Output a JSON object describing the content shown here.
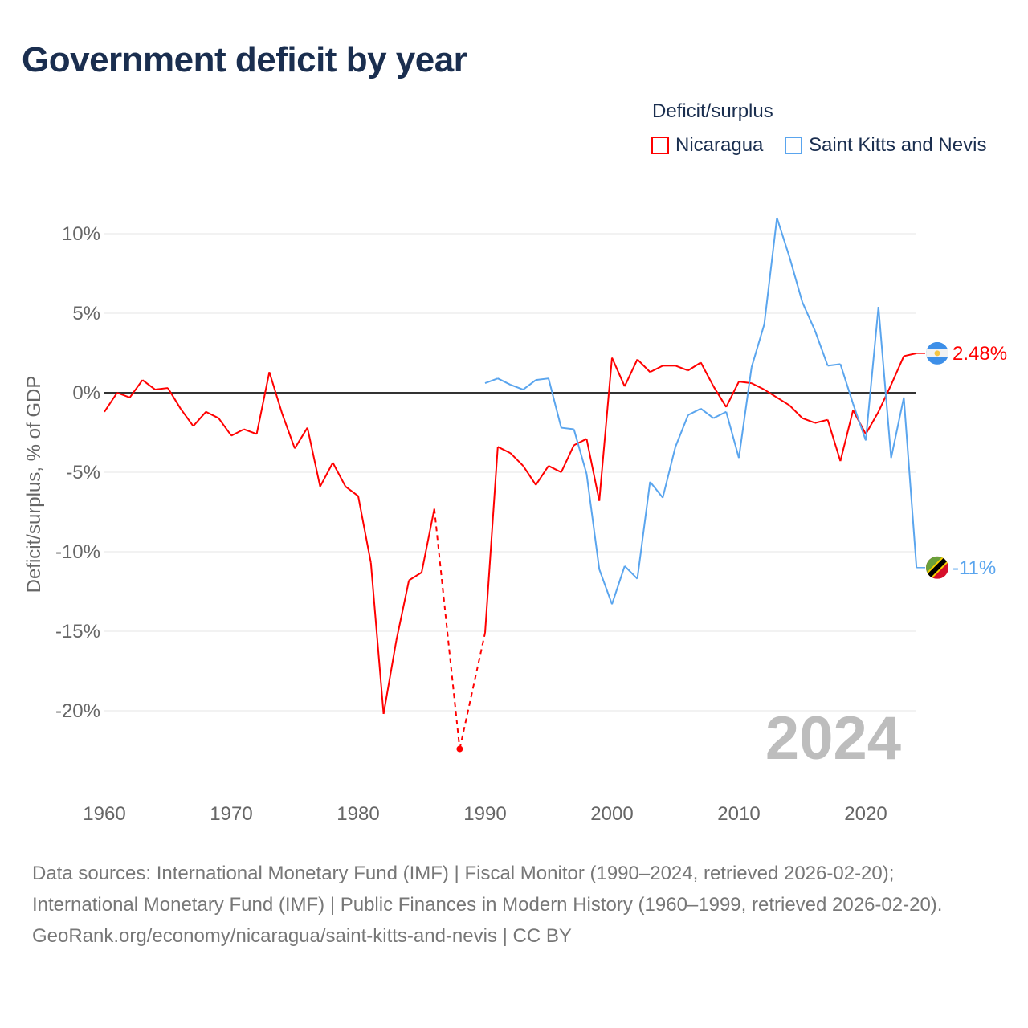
{
  "title": "Government deficit by year",
  "legend": {
    "title": "Deficit/surplus",
    "items": [
      {
        "label": "Nicaragua",
        "color": "#ff0000"
      },
      {
        "label": "Saint Kitts and Nevis",
        "color": "#5aa5ee"
      }
    ]
  },
  "footer": {
    "sources": "Data sources: International Monetary Fund (IMF) | Fiscal Monitor (1990–2024, retrieved 2026-02-20); International Monetary Fund (IMF) | Public Finances in Modern History (1960–1999, retrieved 2026-02-20).",
    "credit": "GeoRank.org/economy/nicaragua/saint-kitts-and-nevis | CC BY"
  },
  "chart_data": {
    "type": "line",
    "title": "Government deficit by year",
    "ylabel": "Deficit/surplus, % of GDP",
    "xlabel": "",
    "year_watermark": "2024",
    "xlim": [
      1960,
      2024
    ],
    "ylim": [
      -24,
      12
    ],
    "xticks": [
      "1960",
      "1970",
      "1980",
      "1990",
      "2000",
      "2010",
      "2020"
    ],
    "yticks": [
      {
        "v": 10,
        "label": "10%"
      },
      {
        "v": 5,
        "label": "5%"
      },
      {
        "v": 0,
        "label": "0%"
      },
      {
        "v": -5,
        "label": "-5%"
      },
      {
        "v": -10,
        "label": "-10%"
      },
      {
        "v": -15,
        "label": "-15%"
      },
      {
        "v": -20,
        "label": "-20%"
      }
    ],
    "series": [
      {
        "name": "Nicaragua",
        "color": "#ff0000",
        "end_label": "2.48%",
        "flag": "nicaragua-flag",
        "x": [
          1960,
          1961,
          1962,
          1963,
          1964,
          1965,
          1966,
          1967,
          1968,
          1969,
          1970,
          1971,
          1972,
          1973,
          1974,
          1975,
          1976,
          1977,
          1978,
          1979,
          1980,
          1981,
          1982,
          1983,
          1984,
          1985,
          1986,
          1988,
          1990,
          1991,
          1992,
          1993,
          1994,
          1995,
          1996,
          1997,
          1998,
          1999,
          2000,
          2001,
          2002,
          2003,
          2004,
          2005,
          2006,
          2007,
          2008,
          2009,
          2010,
          2011,
          2012,
          2013,
          2014,
          2015,
          2016,
          2017,
          2018,
          2019,
          2020,
          2021,
          2022,
          2023,
          2024
        ],
        "values": [
          -1.2,
          0.0,
          -0.3,
          0.8,
          0.2,
          0.3,
          -1.0,
          -2.1,
          -1.2,
          -1.6,
          -2.7,
          -2.3,
          -2.6,
          1.3,
          -1.3,
          -3.5,
          -2.2,
          -5.9,
          -4.4,
          -5.9,
          -6.5,
          -10.7,
          -20.2,
          -15.6,
          -11.8,
          -11.3,
          -7.3,
          -22.4,
          -15.1,
          -3.4,
          -3.8,
          -4.6,
          -5.8,
          -4.6,
          -5.0,
          -3.3,
          -2.9,
          -6.8,
          2.2,
          0.4,
          2.1,
          1.3,
          1.7,
          1.7,
          1.4,
          1.9,
          0.4,
          -0.9,
          0.7,
          0.6,
          0.2,
          -0.3,
          -0.8,
          -1.6,
          -1.9,
          -1.7,
          -4.3,
          -1.1,
          -2.6,
          -1.2,
          0.5,
          2.3,
          2.48
        ]
      },
      {
        "name": "Saint Kitts and Nevis",
        "color": "#5aa5ee",
        "end_label": "-11%",
        "flag": "saint-kitts-and-nevis-flag",
        "x": [
          1990,
          1991,
          1992,
          1993,
          1994,
          1995,
          1996,
          1997,
          1998,
          1999,
          2000,
          2001,
          2002,
          2003,
          2004,
          2005,
          2006,
          2007,
          2008,
          2009,
          2010,
          2011,
          2012,
          2013,
          2014,
          2015,
          2016,
          2017,
          2018,
          2019,
          2020,
          2021,
          2022,
          2023,
          2024
        ],
        "values": [
          0.6,
          0.9,
          0.5,
          0.2,
          0.8,
          0.9,
          -2.2,
          -2.3,
          -5.1,
          -11.1,
          -13.3,
          -10.9,
          -11.7,
          -5.6,
          -6.6,
          -3.4,
          -1.4,
          -1.0,
          -1.6,
          -1.2,
          -4.1,
          1.6,
          4.3,
          11.0,
          8.5,
          5.7,
          3.9,
          1.7,
          1.8,
          -0.7,
          -3.0,
          5.4,
          -4.1,
          -0.3,
          -11.0
        ]
      }
    ]
  }
}
